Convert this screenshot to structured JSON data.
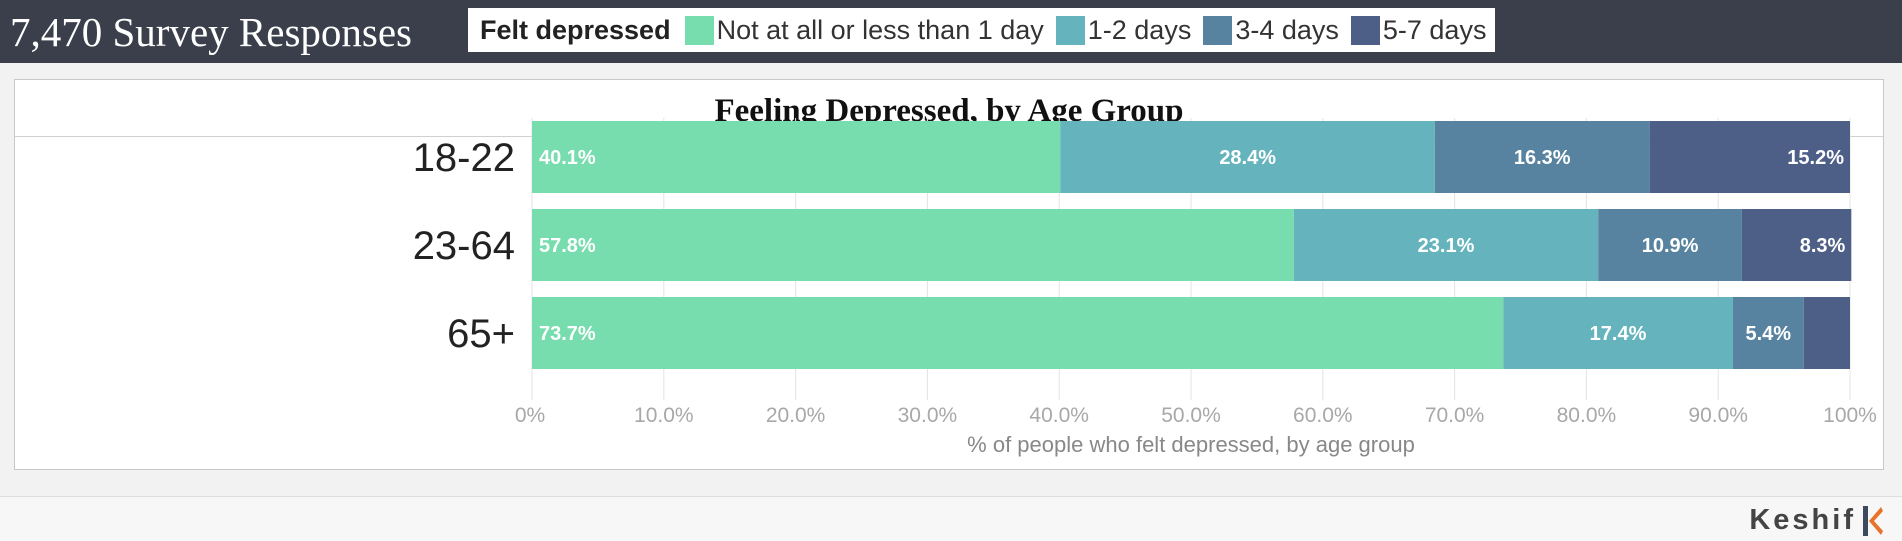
{
  "app": {
    "title": "7,470 Survey Responses",
    "brand": "Keshif"
  },
  "legend": {
    "title": "Felt depressed"
  },
  "chart_data": {
    "type": "bar",
    "orientation": "horizontal",
    "stacked": true,
    "title": "Feeling Depressed, by Age Group",
    "xlabel": "% of people who felt depressed, by age group",
    "ylabel": "",
    "xlim": [
      0,
      100
    ],
    "x_ticks": [
      "0%",
      "10.0%",
      "20.0%",
      "30.0%",
      "40.0%",
      "50.0%",
      "60.0%",
      "70.0%",
      "80.0%",
      "90.0%",
      "100%"
    ],
    "categories": [
      "18-22",
      "23-64",
      "65+"
    ],
    "series": [
      {
        "name": "Not at all or less than 1 day",
        "color": "#77ddae",
        "values": [
          40.1,
          57.8,
          73.7
        ],
        "labels": [
          "40.1%",
          "57.8%",
          "73.7%"
        ]
      },
      {
        "name": "1-2 days",
        "color": "#65b4bd",
        "values": [
          28.4,
          23.1,
          17.4
        ],
        "labels": [
          "28.4%",
          "23.1%",
          "17.4%"
        ]
      },
      {
        "name": "3-4 days",
        "color": "#5883a0",
        "values": [
          16.3,
          10.9,
          5.4
        ],
        "labels": [
          "16.3%",
          "10.9%",
          "5.4%"
        ]
      },
      {
        "name": "5-7 days",
        "color": "#4d5f86",
        "values": [
          15.2,
          8.3,
          3.5
        ],
        "labels": [
          "15.2%",
          "8.3%",
          ""
        ]
      }
    ]
  }
}
